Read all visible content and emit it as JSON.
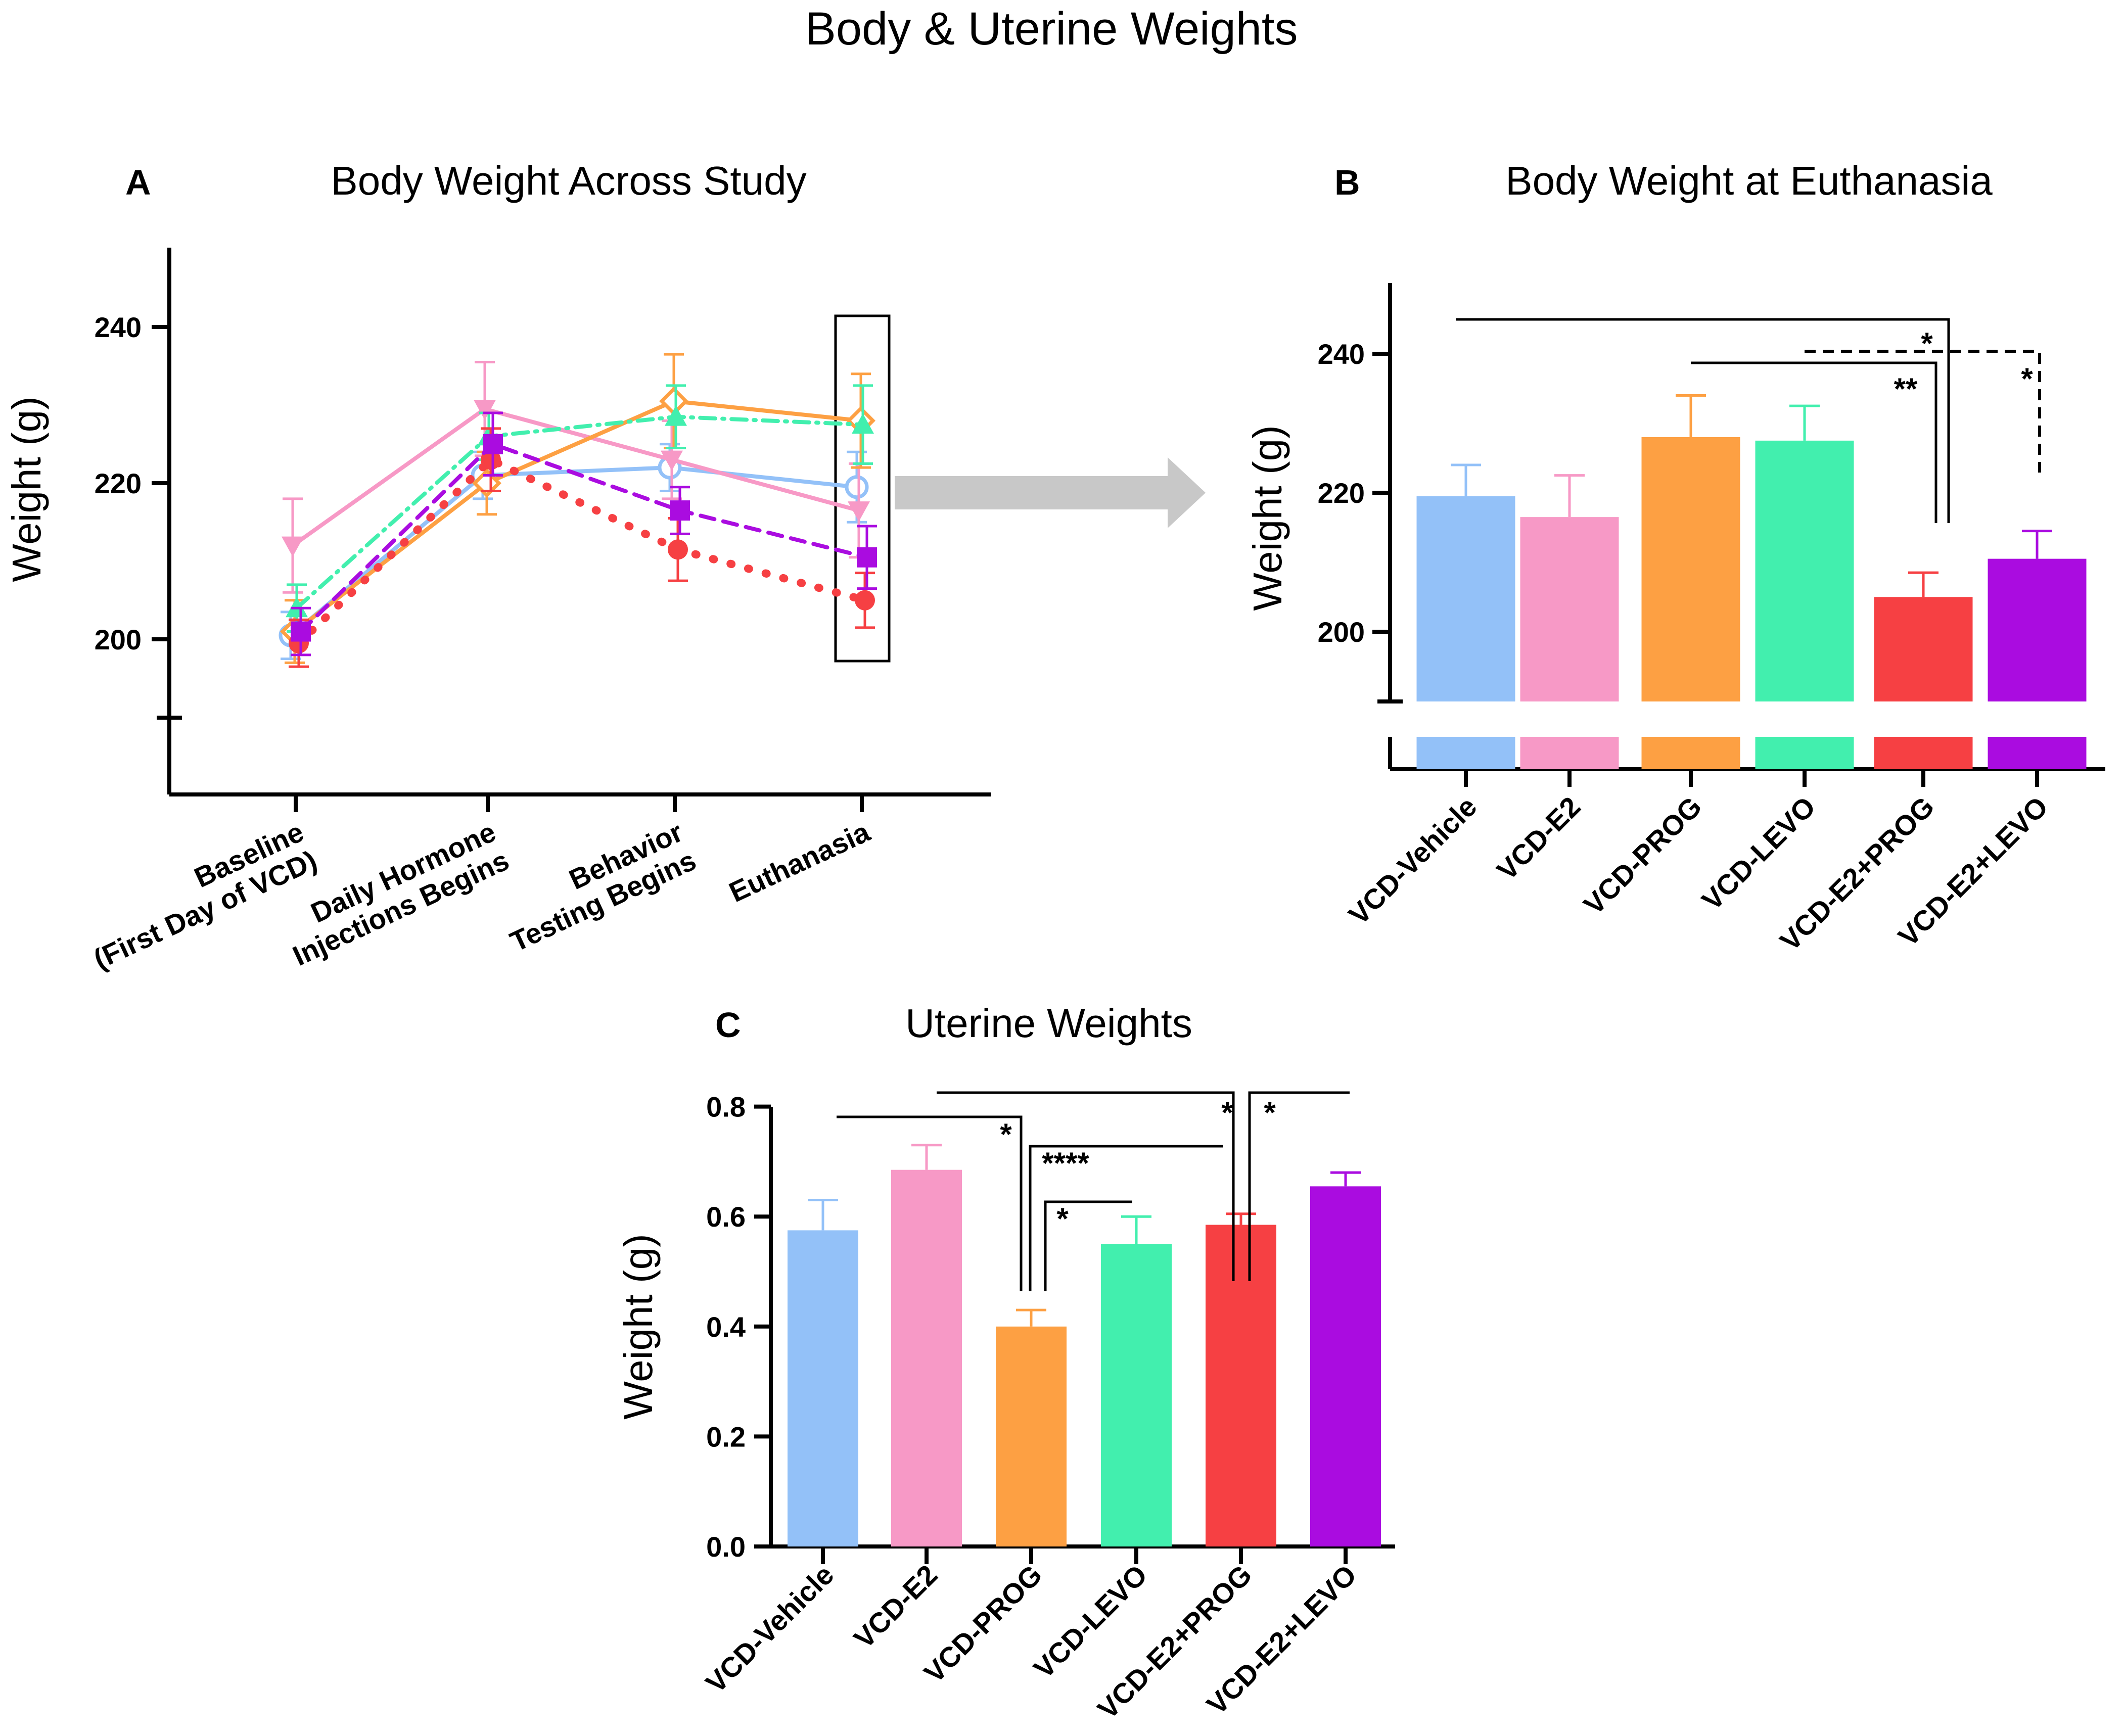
{
  "figure_title": "Body & Uterine Weights",
  "colors": {
    "VCD-Vehicle": "#93C1F8",
    "VCD-E2": "#F799C6",
    "VCD-PROG": "#FDA043",
    "VCD-LEVO": "#42EFAE",
    "VCD-E2+PROG": "#F64043",
    "VCD-E2+LEVO": "#AA0CE0",
    "arrow": "#C8C8C8"
  },
  "chart_data": [
    {
      "panel": "A",
      "type": "line",
      "title": "Body Weight Across Study",
      "xlabel": "",
      "ylabel": "Weight (g)",
      "categories": [
        "Baseline\n(First Day of VCD)",
        "Daily Hormone\nInjections Begins",
        "Behavior\nTesting Begins",
        "Euthanasia"
      ],
      "ylim": [
        190,
        250
      ],
      "yticks": [
        200,
        220,
        240
      ],
      "highlight": "Euthanasia",
      "series": [
        {
          "name": "VCD-Vehicle",
          "values": [
            200.5,
            221,
            222,
            219.5
          ],
          "errors": [
            3,
            3,
            3,
            4.5
          ],
          "marker": "open-circle",
          "dash": "solid"
        },
        {
          "name": "VCD-E2",
          "values": [
            212,
            229.5,
            223,
            216.5
          ],
          "errors": [
            6,
            6,
            5,
            6
          ],
          "marker": "down-triangle",
          "dash": "solid"
        },
        {
          "name": "VCD-PROG",
          "values": [
            201,
            220,
            230.5,
            228
          ],
          "errors": [
            4,
            4,
            6,
            6
          ],
          "marker": "open-diamond",
          "dash": "solid"
        },
        {
          "name": "VCD-LEVO",
          "values": [
            204,
            226,
            228.5,
            227.5
          ],
          "errors": [
            3,
            3,
            4,
            5
          ],
          "marker": "triangle",
          "dash": "dashdot"
        },
        {
          "name": "VCD-E2+PROG",
          "values": [
            199.5,
            223,
            211.5,
            205
          ],
          "errors": [
            3,
            4,
            4,
            3.5
          ],
          "marker": "circle",
          "dash": "dotted"
        },
        {
          "name": "VCD-E2+LEVO",
          "values": [
            201,
            225,
            216.5,
            210.5
          ],
          "errors": [
            3,
            4,
            3,
            4
          ],
          "marker": "square",
          "dash": "dashed"
        }
      ]
    },
    {
      "panel": "B",
      "type": "bar",
      "title": "Body Weight at Euthanasia",
      "ylabel": "Weight (g)",
      "categories": [
        "VCD-Vehicle",
        "VCD-E2",
        "VCD-PROG",
        "VCD-LEVO",
        "VCD-E2+PROG",
        "VCD-E2+LEVO"
      ],
      "values": [
        219.5,
        216.5,
        228,
        227.5,
        205,
        210.5
      ],
      "errors": [
        4.5,
        6,
        6,
        5,
        3.5,
        4
      ],
      "ylim": [
        190,
        250
      ],
      "yticks": [
        200,
        220,
        240
      ],
      "axis_break": true,
      "significance": [
        {
          "from": "VCD-Vehicle",
          "to": "VCD-E2+PROG",
          "label": "*",
          "style": "solid"
        },
        {
          "from": "VCD-PROG",
          "to": "VCD-E2+PROG",
          "label": "**",
          "style": "solid"
        },
        {
          "from": "VCD-LEVO",
          "to": "VCD-E2+LEVO",
          "label": "*",
          "style": "dashed"
        }
      ]
    },
    {
      "panel": "C",
      "type": "bar",
      "title": "Uterine Weights",
      "ylabel": "Weight (g)",
      "categories": [
        "VCD-Vehicle",
        "VCD-E2",
        "VCD-PROG",
        "VCD-LEVO",
        "VCD-E2+PROG",
        "VCD-E2+LEVO"
      ],
      "values": [
        0.575,
        0.685,
        0.4,
        0.55,
        0.585,
        0.655
      ],
      "errors": [
        0.055,
        0.045,
        0.03,
        0.05,
        0.02,
        0.025
      ],
      "ylim": [
        0,
        0.8
      ],
      "yticks": [
        "0.0",
        "0.2",
        "0.4",
        "0.6",
        "0.8"
      ],
      "significance": [
        {
          "from": "VCD-Vehicle",
          "to": "VCD-PROG",
          "label": "*"
        },
        {
          "from": "VCD-PROG",
          "to": "VCD-E2+PROG",
          "label": "****"
        },
        {
          "from": "VCD-PROG",
          "to": "VCD-LEVO",
          "label": "*"
        },
        {
          "from": "VCD-E2",
          "to": "VCD-E2+PROG",
          "label": "*"
        },
        {
          "from": "VCD-E2+PROG",
          "to": "VCD-E2+LEVO",
          "label": "*"
        }
      ]
    }
  ]
}
